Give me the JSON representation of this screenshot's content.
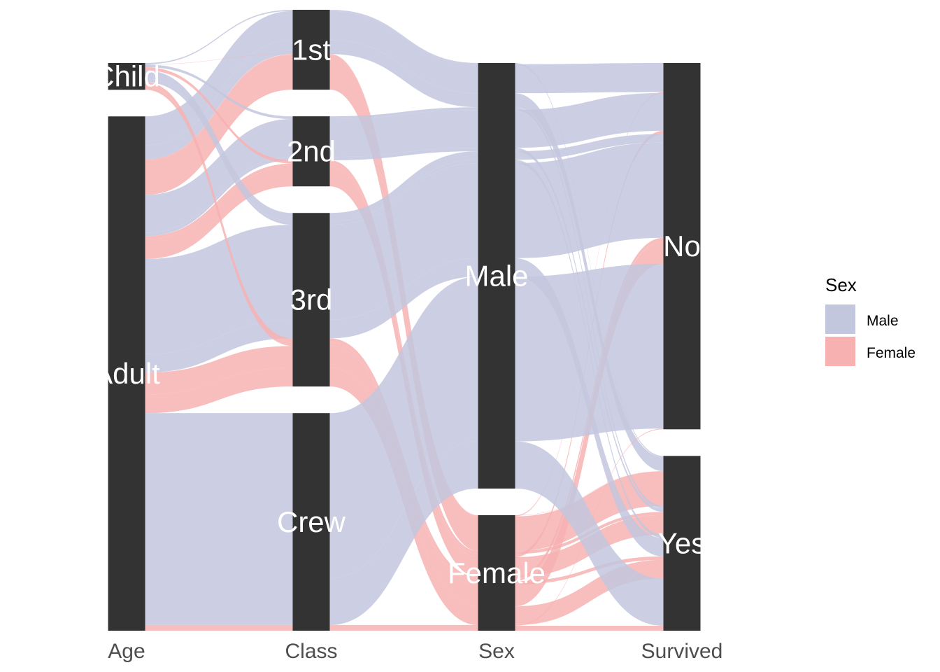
{
  "chart_data": {
    "type": "alluvial",
    "axes": [
      "Age",
      "Class",
      "Sex",
      "Survived"
    ],
    "strata": {
      "Age": [
        "Child",
        "Adult"
      ],
      "Class": [
        "1st",
        "2nd",
        "3rd",
        "Crew"
      ],
      "Sex": [
        "Male",
        "Female"
      ],
      "Survived": [
        "No",
        "Yes"
      ]
    },
    "fill_variable": "Sex",
    "colors": {
      "Male": "#c3c7de",
      "Female": "#f7b1b1",
      "stratum": "#333333"
    },
    "flows": [
      {
        "Class": "1st",
        "Sex": "Male",
        "Age": "Child",
        "Survived": "Yes",
        "n": 5
      },
      {
        "Class": "1st",
        "Sex": "Female",
        "Age": "Child",
        "Survived": "Yes",
        "n": 1
      },
      {
        "Class": "1st",
        "Sex": "Male",
        "Age": "Adult",
        "Survived": "No",
        "n": 118
      },
      {
        "Class": "1st",
        "Sex": "Male",
        "Age": "Adult",
        "Survived": "Yes",
        "n": 57
      },
      {
        "Class": "1st",
        "Sex": "Female",
        "Age": "Adult",
        "Survived": "No",
        "n": 4
      },
      {
        "Class": "1st",
        "Sex": "Female",
        "Age": "Adult",
        "Survived": "Yes",
        "n": 140
      },
      {
        "Class": "2nd",
        "Sex": "Male",
        "Age": "Child",
        "Survived": "Yes",
        "n": 11
      },
      {
        "Class": "2nd",
        "Sex": "Female",
        "Age": "Child",
        "Survived": "Yes",
        "n": 13
      },
      {
        "Class": "2nd",
        "Sex": "Male",
        "Age": "Adult",
        "Survived": "No",
        "n": 154
      },
      {
        "Class": "2nd",
        "Sex": "Male",
        "Age": "Adult",
        "Survived": "Yes",
        "n": 14
      },
      {
        "Class": "2nd",
        "Sex": "Female",
        "Age": "Adult",
        "Survived": "No",
        "n": 13
      },
      {
        "Class": "2nd",
        "Sex": "Female",
        "Age": "Adult",
        "Survived": "Yes",
        "n": 80
      },
      {
        "Class": "3rd",
        "Sex": "Male",
        "Age": "Child",
        "Survived": "No",
        "n": 35
      },
      {
        "Class": "3rd",
        "Sex": "Male",
        "Age": "Child",
        "Survived": "Yes",
        "n": 13
      },
      {
        "Class": "3rd",
        "Sex": "Female",
        "Age": "Child",
        "Survived": "No",
        "n": 17
      },
      {
        "Class": "3rd",
        "Sex": "Female",
        "Age": "Child",
        "Survived": "Yes",
        "n": 14
      },
      {
        "Class": "3rd",
        "Sex": "Male",
        "Age": "Adult",
        "Survived": "No",
        "n": 387
      },
      {
        "Class": "3rd",
        "Sex": "Male",
        "Age": "Adult",
        "Survived": "Yes",
        "n": 75
      },
      {
        "Class": "3rd",
        "Sex": "Female",
        "Age": "Adult",
        "Survived": "No",
        "n": 89
      },
      {
        "Class": "3rd",
        "Sex": "Female",
        "Age": "Adult",
        "Survived": "Yes",
        "n": 76
      },
      {
        "Class": "Crew",
        "Sex": "Male",
        "Age": "Adult",
        "Survived": "No",
        "n": 670
      },
      {
        "Class": "Crew",
        "Sex": "Male",
        "Age": "Adult",
        "Survived": "Yes",
        "n": 192
      },
      {
        "Class": "Crew",
        "Sex": "Female",
        "Age": "Adult",
        "Survived": "No",
        "n": 3
      },
      {
        "Class": "Crew",
        "Sex": "Female",
        "Age": "Adult",
        "Survived": "Yes",
        "n": 20
      }
    ],
    "legend": {
      "title": "Sex",
      "position": "right",
      "items": [
        {
          "label": "Male",
          "color": "#c3c7de"
        },
        {
          "label": "Female",
          "color": "#f7b1b1"
        }
      ]
    },
    "title": "",
    "xlabel": "",
    "ylabel": "",
    "grid": false
  }
}
